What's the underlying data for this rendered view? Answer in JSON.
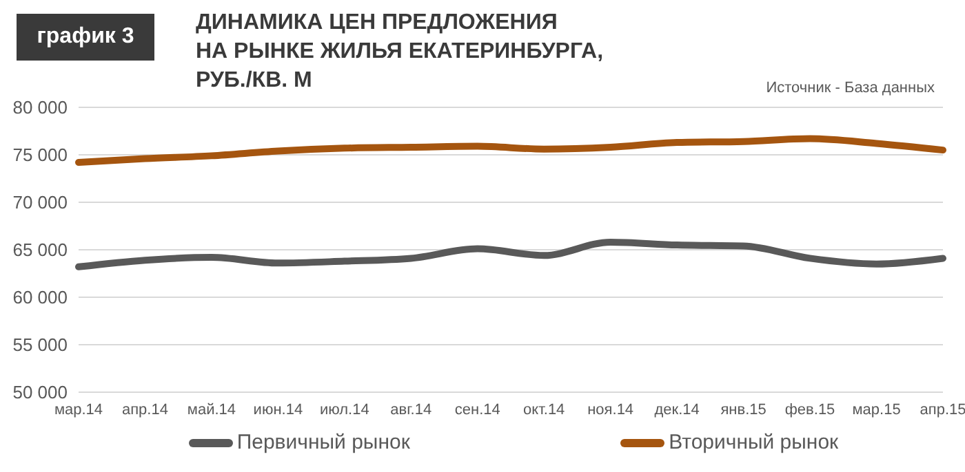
{
  "chart_data": {
    "type": "line",
    "title": "ДИНАМИКА ЦЕН ПРЕДЛОЖЕНИЯ\nНА РЫНКЕ ЖИЛЬЯ ЕКАТЕРИНБУРГА,\nРУБ./КВ. М",
    "subtitle": "график 3",
    "annotations": [
      "Источник - База данных"
    ],
    "categories": [
      "мар.14",
      "апр.14",
      "май.14",
      "июн.14",
      "июл.14",
      "авг.14",
      "сен.14",
      "окт.14",
      "ноя.14",
      "дек.14",
      "янв.15",
      "фев.15",
      "мар.15",
      "апр.15"
    ],
    "series": [
      {
        "name": "Первичный рынок",
        "color": "#595959",
        "values": [
          63200,
          63900,
          64200,
          63600,
          63800,
          64100,
          65100,
          64400,
          65800,
          65500,
          65400,
          64100,
          63500,
          64100
        ]
      },
      {
        "name": "Вторичный рынок",
        "color": "#a5550f",
        "values": [
          74200,
          74600,
          74900,
          75400,
          75700,
          75800,
          75900,
          75600,
          75800,
          76300,
          76400,
          76700,
          76200,
          75500
        ]
      }
    ],
    "ylim": [
      50000,
      80000
    ],
    "yticks": [
      {
        "value": 50000,
        "label": "50 000"
      },
      {
        "value": 55000,
        "label": "55 000"
      },
      {
        "value": 60000,
        "label": "60 000"
      },
      {
        "value": 65000,
        "label": "65 000"
      },
      {
        "value": 70000,
        "label": "70 000"
      },
      {
        "value": 75000,
        "label": "75 000"
      },
      {
        "value": 80000,
        "label": "80 000"
      }
    ],
    "grid": "y",
    "legend": "bottom",
    "marker": "none",
    "line_style": "solid"
  }
}
